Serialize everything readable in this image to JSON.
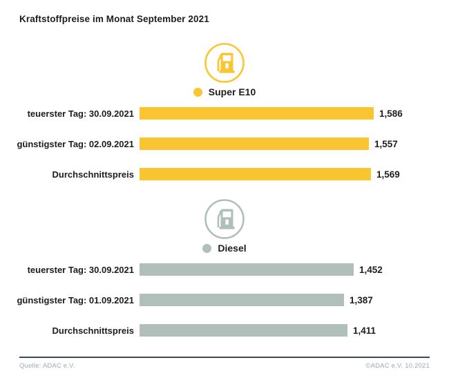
{
  "title": "Kraftstoffpreise im Monat September 2021",
  "footer": {
    "source": "Quelle: ADAC e.V.",
    "copyright": "©ADAC e.V. 10.2021"
  },
  "colors": {
    "super_e10": "#FBC531",
    "diesel": "#B0BFBA",
    "text": "#1D1D1B",
    "footer_text": "#9CABB2",
    "footer_line": "#3C474E"
  },
  "chart_data": {
    "type": "bar",
    "orientation": "horizontal",
    "title": "Kraftstoffpreise im Monat September 2021",
    "value_format": "comma-decimal, EUR per litre",
    "xlim": [
      0,
      1.7
    ],
    "grid": false,
    "legend_position": "above each series, centered",
    "series": [
      {
        "name": "Super E10",
        "icon": "fuel-pump-icon",
        "color": "#FBC531",
        "categories": [
          "teuerster Tag: 30.09.2021",
          "günstigster Tag: 02.09.2021",
          "Durchschnittspreis"
        ],
        "values": [
          1.586,
          1.557,
          1.569
        ],
        "value_labels": [
          "1,586",
          "1,557",
          "1,569"
        ]
      },
      {
        "name": "Diesel",
        "icon": "fuel-pump-icon",
        "color": "#B0BFBA",
        "categories": [
          "teuerster Tag: 30.09.2021",
          "günstigster Tag: 01.09.2021",
          "Durchschnittspreis"
        ],
        "values": [
          1.452,
          1.387,
          1.411
        ],
        "value_labels": [
          "1,452",
          "1,387",
          "1,411"
        ]
      }
    ]
  }
}
